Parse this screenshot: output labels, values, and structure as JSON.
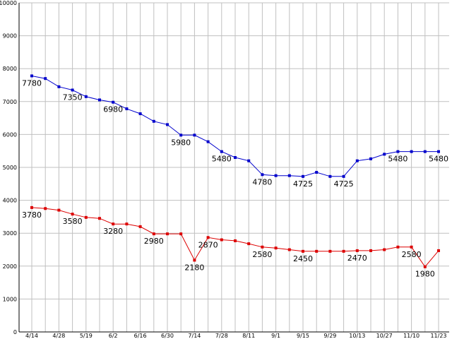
{
  "chart_data": {
    "type": "line",
    "title": "",
    "xlabel": "",
    "ylabel": "",
    "ylim": [
      0,
      10000
    ],
    "yticks": [
      "0",
      "1000",
      "2000",
      "3000",
      "4000",
      "5000",
      "6000",
      "7000",
      "8000",
      "9000",
      "10000"
    ],
    "grid": true,
    "categories": [
      "4/14",
      "",
      "4/28",
      "",
      "5/19",
      "",
      "6/2",
      "",
      "6/16",
      "",
      "6/30",
      "",
      "7/14",
      "",
      "7/28",
      "",
      "8/11",
      "",
      "9/1",
      "",
      "9/15",
      "",
      "9/29",
      "",
      "10/13",
      "",
      "10/27",
      "",
      "11/10",
      "",
      "11/23"
    ],
    "series": [
      {
        "color": "#0000cc",
        "values": [
          7780,
          7700,
          7450,
          7350,
          7150,
          7050,
          6980,
          6780,
          6630,
          6400,
          6300,
          5980,
          5980,
          5780,
          5480,
          5300,
          5200,
          4780,
          4750,
          4750,
          4725,
          4850,
          4725,
          4725,
          5200,
          5260,
          5400,
          5480,
          5480,
          5480,
          5480
        ],
        "labels": {
          "0": "7780",
          "3": "7350",
          "6": "6980",
          "11": "5980",
          "14": "5480",
          "17": "4780",
          "20": "4725",
          "23": "4725",
          "27": "5480",
          "30": "5480"
        }
      },
      {
        "color": "#dd0000",
        "values": [
          3780,
          3750,
          3700,
          3580,
          3480,
          3450,
          3280,
          3280,
          3200,
          2980,
          2980,
          2980,
          2180,
          2870,
          2800,
          2770,
          2680,
          2580,
          2550,
          2500,
          2450,
          2450,
          2450,
          2450,
          2470,
          2470,
          2500,
          2580,
          2580,
          1980,
          2470
        ],
        "labels": {
          "0": "3780",
          "3": "3580",
          "6": "3280",
          "9": "2980",
          "12": "2180",
          "13": "2870",
          "17": "2580",
          "20": "2450",
          "24": "2470",
          "28": "2580",
          "29": "1980"
        }
      }
    ]
  }
}
